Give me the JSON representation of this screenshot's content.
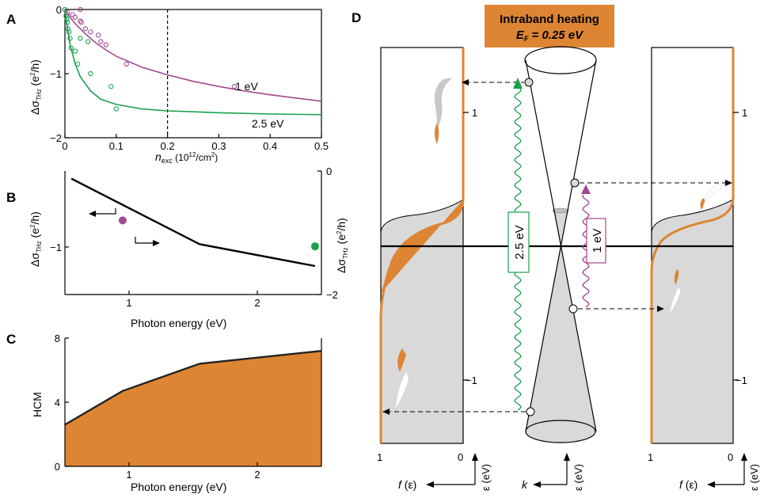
{
  "colors": {
    "orange": "#DD8533",
    "green": "#1BA14E",
    "purple": "#A2488F",
    "gray": "#D9D9D9",
    "black": "#000000"
  },
  "panels": {
    "a": "A",
    "b": "B",
    "c": "C",
    "d": "D"
  },
  "chart_data": [
    {
      "type": "scatter",
      "panel": "A",
      "xlabel": {
        "main": "n",
        "sub": "exc",
        "unit": " (10",
        "exp": "12",
        "unit2": "/cm",
        "exp2": "2",
        "close": ")"
      },
      "ylabel": {
        "main": "Δσ",
        "sub": "THz",
        "unit": " (e",
        "exp": "2",
        "unit2": "/h)"
      },
      "xlim": [
        0,
        0.5
      ],
      "ylim": [
        -2,
        0
      ],
      "xticks": [
        "0",
        "0.1",
        "0.2",
        "0.3",
        "0.4",
        "0.5"
      ],
      "yticks": [
        "0",
        "−1",
        "−2"
      ],
      "reference_line_x": 0.2,
      "series": [
        {
          "name": "1 eV",
          "color": "#A2488F",
          "points": [
            [
              0.0,
              0.0
            ],
            [
              0.005,
              -0.05
            ],
            [
              0.015,
              -0.08
            ],
            [
              0.02,
              -0.12
            ],
            [
              0.03,
              -0.18
            ],
            [
              0.03,
              0.0
            ],
            [
              0.032,
              -0.2
            ],
            [
              0.04,
              -0.3
            ],
            [
              0.05,
              -0.35
            ],
            [
              0.065,
              -0.4
            ],
            [
              0.07,
              -0.5
            ],
            [
              0.08,
              -0.55
            ],
            [
              0.12,
              -0.85
            ],
            [
              0.33,
              -1.2
            ]
          ],
          "fit": [
            [
              0.0,
              0.0
            ],
            [
              0.01,
              -0.12
            ],
            [
              0.02,
              -0.22
            ],
            [
              0.04,
              -0.38
            ],
            [
              0.06,
              -0.52
            ],
            [
              0.08,
              -0.63
            ],
            [
              0.1,
              -0.73
            ],
            [
              0.15,
              -0.9
            ],
            [
              0.2,
              -1.02
            ],
            [
              0.25,
              -1.12
            ],
            [
              0.3,
              -1.2
            ],
            [
              0.35,
              -1.27
            ],
            [
              0.4,
              -1.33
            ],
            [
              0.45,
              -1.38
            ],
            [
              0.5,
              -1.43
            ]
          ]
        },
        {
          "name": "2.5 eV",
          "color": "#1BA14E",
          "points": [
            [
              0.0,
              0.0
            ],
            [
              0.002,
              -0.1
            ],
            [
              0.004,
              -0.15
            ],
            [
              0.005,
              -0.2
            ],
            [
              0.006,
              -0.3
            ],
            [
              0.008,
              -0.35
            ],
            [
              0.01,
              -0.45
            ],
            [
              0.012,
              -0.6
            ],
            [
              0.02,
              -0.65
            ],
            [
              0.025,
              -0.85
            ],
            [
              0.03,
              -0.45
            ],
            [
              0.045,
              -0.5
            ],
            [
              0.05,
              -1.0
            ],
            [
              0.09,
              -1.2
            ],
            [
              0.1,
              -1.55
            ]
          ],
          "fit": [
            [
              0.0,
              0.0
            ],
            [
              0.005,
              -0.3
            ],
            [
              0.01,
              -0.55
            ],
            [
              0.02,
              -0.85
            ],
            [
              0.03,
              -1.05
            ],
            [
              0.05,
              -1.27
            ],
            [
              0.07,
              -1.4
            ],
            [
              0.1,
              -1.48
            ],
            [
              0.15,
              -1.55
            ],
            [
              0.2,
              -1.58
            ],
            [
              0.3,
              -1.61
            ],
            [
              0.4,
              -1.63
            ],
            [
              0.5,
              -1.64
            ]
          ]
        }
      ]
    },
    {
      "type": "line",
      "panel": "B",
      "xlabel": "Photon energy (eV)",
      "ylabel_left": {
        "main": "Δσ",
        "sub": "THz",
        "unit": " (e",
        "exp": "2",
        "unit2": "/h)"
      },
      "ylabel_right": {
        "main": "Δσ",
        "sub": "THz",
        "unit": " (e",
        "exp": "2",
        "unit2": "/h)"
      },
      "xlim": [
        0.5,
        2.5
      ],
      "ylim_left": [
        -1.5,
        -0.2
      ],
      "ylim_right": [
        -2,
        0
      ],
      "xticks": [
        "1",
        "2"
      ],
      "yticks_left": [
        "−1"
      ],
      "yticks_right": [
        "0",
        "−2"
      ],
      "line": {
        "x": [
          0.55,
          1.55,
          2.45
        ],
        "y": [
          -0.28,
          -0.97,
          -1.2
        ],
        "axis": "left"
      },
      "points": [
        {
          "x": 0.95,
          "y": -0.8,
          "err": 0.06,
          "color": "#A2488F",
          "axis": "right"
        },
        {
          "x": 2.45,
          "y": -1.22,
          "err": 0.05,
          "color": "#1BA14E",
          "axis": "right"
        }
      ]
    },
    {
      "type": "area",
      "panel": "C",
      "xlabel": "Photon energy (eV)",
      "ylabel": "HCM",
      "xlim": [
        0.5,
        2.5
      ],
      "ylim": [
        0,
        8
      ],
      "xticks": [
        "1",
        "2"
      ],
      "yticks": [
        "0",
        "4",
        "8"
      ],
      "x": [
        0.5,
        0.95,
        1.55,
        2.5
      ],
      "y": [
        2.6,
        4.7,
        6.4,
        7.2
      ]
    }
  ],
  "diagram_d": {
    "title": "Intraband heating",
    "subtitle_main": "E",
    "subtitle_sub": "F",
    "subtitle_rest": " = 0.25 eV",
    "transition_high": "2.5 eV",
    "transition_low": "1 eV",
    "energy_tick_pos": "1",
    "energy_tick_neg": "−1",
    "occupation_left": "1",
    "occupation_right": "0",
    "f_label": "f",
    "f_arg": " (ε)",
    "eps_label": "ε (eV)",
    "k_label": "k"
  }
}
